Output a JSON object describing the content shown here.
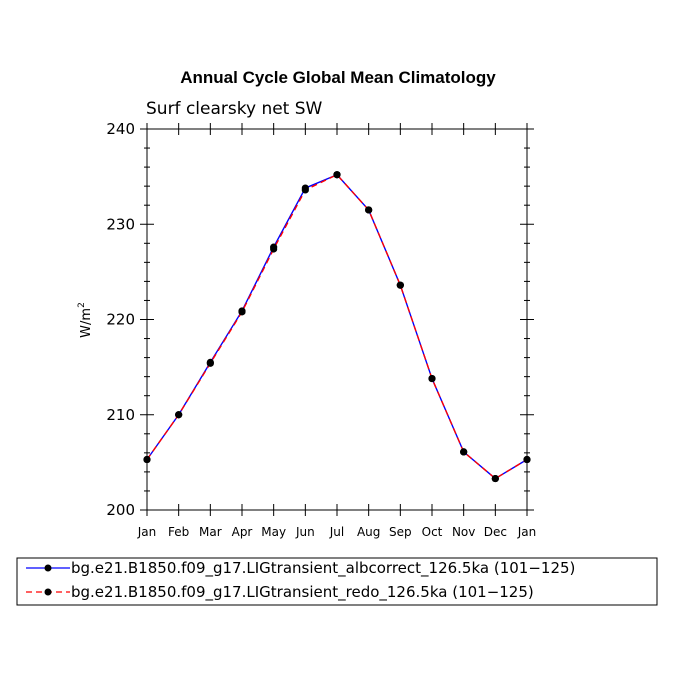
{
  "chart_data": {
    "type": "line",
    "title": "Annual Cycle Global Mean Climatology",
    "subtitle": "Surf clearsky net SW",
    "ylabel": "W/m",
    "ylabel_superscript": "2",
    "ylim": [
      200,
      240
    ],
    "yticks": [
      200,
      210,
      220,
      230,
      240
    ],
    "categories": [
      "Jan",
      "Feb",
      "Mar",
      "Apr",
      "May",
      "Jun",
      "Jul",
      "Aug",
      "Sep",
      "Oct",
      "Nov",
      "Dec",
      "Jan"
    ],
    "series": [
      {
        "name": "bg.e21.B1850.f09_g17.LIGtransient_albcorrect_126.5ka (101−125)",
        "color": "#0000ff",
        "dash": "solid",
        "values": [
          205.3,
          210.0,
          215.5,
          220.9,
          227.6,
          233.8,
          235.2,
          231.5,
          223.6,
          213.8,
          206.1,
          203.3,
          205.3
        ]
      },
      {
        "name": "bg.e21.B1850.f09_g17.LIGtransient_redo_126.5ka (101−125)",
        "color": "#ff0000",
        "dash": "dashed",
        "values": [
          205.3,
          210.0,
          215.4,
          220.8,
          227.4,
          233.6,
          235.2,
          231.5,
          223.6,
          213.8,
          206.1,
          203.3,
          205.3
        ]
      }
    ]
  }
}
